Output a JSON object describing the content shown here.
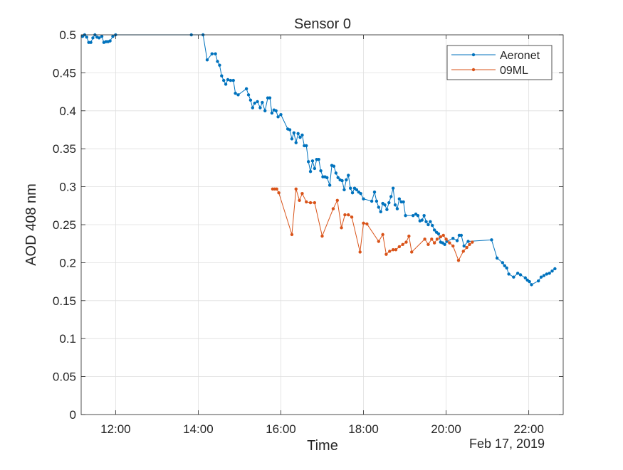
{
  "chart_data": {
    "type": "line",
    "title": "Sensor 0",
    "xlabel": "Time",
    "ylabel": "AOD 408 nm",
    "date_label": "Feb 17, 2019",
    "xlim": [
      "11:10",
      "22:50"
    ],
    "ylim": [
      0,
      0.5
    ],
    "x_ticks": [
      "12:00",
      "14:00",
      "16:00",
      "18:00",
      "20:00",
      "22:00"
    ],
    "y_ticks": [
      "0",
      "0.05",
      "0.1",
      "0.15",
      "0.2",
      "0.25",
      "0.3",
      "0.35",
      "0.4",
      "0.45",
      "0.5"
    ],
    "grid": true,
    "legend_position": "top-right",
    "series": [
      {
        "name": "Aeronet",
        "color": "#0072BD",
        "points": [
          [
            "11:12",
            0.498
          ],
          [
            "11:15",
            0.5
          ],
          [
            "11:18",
            0.497
          ],
          [
            "11:21",
            0.49
          ],
          [
            "11:24",
            0.49
          ],
          [
            "11:27",
            0.496
          ],
          [
            "11:30",
            0.5
          ],
          [
            "11:33",
            0.497
          ],
          [
            "11:36",
            0.496
          ],
          [
            "11:40",
            0.498
          ],
          [
            "11:43",
            0.49
          ],
          [
            "11:46",
            0.491
          ],
          [
            "11:49",
            0.491
          ],
          [
            "11:52",
            0.492
          ],
          [
            "11:56",
            0.498
          ],
          [
            "12:00",
            0.5
          ],
          [
            "13:50",
            0.5
          ],
          [
            "14:07",
            0.5
          ],
          [
            "14:13",
            0.467
          ],
          [
            "14:20",
            0.475
          ],
          [
            "14:25",
            0.475
          ],
          [
            "14:28",
            0.465
          ],
          [
            "14:31",
            0.46
          ],
          [
            "14:34",
            0.446
          ],
          [
            "14:37",
            0.44
          ],
          [
            "14:40",
            0.435
          ],
          [
            "14:43",
            0.441
          ],
          [
            "14:47",
            0.44
          ],
          [
            "14:51",
            0.44
          ],
          [
            "14:54",
            0.423
          ],
          [
            "14:58",
            0.421
          ],
          [
            "15:10",
            0.429
          ],
          [
            "15:13",
            0.421
          ],
          [
            "15:16",
            0.414
          ],
          [
            "15:19",
            0.404
          ],
          [
            "15:22",
            0.41
          ],
          [
            "15:26",
            0.412
          ],
          [
            "15:30",
            0.404
          ],
          [
            "15:33",
            0.411
          ],
          [
            "15:37",
            0.4
          ],
          [
            "15:41",
            0.417
          ],
          [
            "15:44",
            0.417
          ],
          [
            "15:47",
            0.397
          ],
          [
            "15:50",
            0.401
          ],
          [
            "15:53",
            0.4
          ],
          [
            "15:56",
            0.392
          ],
          [
            "16:00",
            0.395
          ],
          [
            "16:10",
            0.376
          ],
          [
            "16:13",
            0.375
          ],
          [
            "16:16",
            0.363
          ],
          [
            "16:19",
            0.371
          ],
          [
            "16:22",
            0.358
          ],
          [
            "16:25",
            0.37
          ],
          [
            "16:28",
            0.365
          ],
          [
            "16:31",
            0.368
          ],
          [
            "16:34",
            0.354
          ],
          [
            "16:37",
            0.354
          ],
          [
            "16:40",
            0.333
          ],
          [
            "16:43",
            0.32
          ],
          [
            "16:46",
            0.334
          ],
          [
            "16:49",
            0.324
          ],
          [
            "16:52",
            0.336
          ],
          [
            "16:55",
            0.336
          ],
          [
            "16:58",
            0.321
          ],
          [
            "17:01",
            0.313
          ],
          [
            "17:04",
            0.313
          ],
          [
            "17:07",
            0.312
          ],
          [
            "17:11",
            0.302
          ],
          [
            "17:14",
            0.328
          ],
          [
            "17:17",
            0.327
          ],
          [
            "17:20",
            0.318
          ],
          [
            "17:23",
            0.312
          ],
          [
            "17:26",
            0.309
          ],
          [
            "17:29",
            0.308
          ],
          [
            "17:32",
            0.296
          ],
          [
            "17:35",
            0.309
          ],
          [
            "17:38",
            0.315
          ],
          [
            "17:41",
            0.298
          ],
          [
            "17:44",
            0.292
          ],
          [
            "17:47",
            0.298
          ],
          [
            "17:50",
            0.296
          ],
          [
            "17:53",
            0.293
          ],
          [
            "17:56",
            0.291
          ],
          [
            "18:00",
            0.284
          ],
          [
            "18:12",
            0.281
          ],
          [
            "18:16",
            0.293
          ],
          [
            "18:19",
            0.281
          ],
          [
            "18:22",
            0.273
          ],
          [
            "18:25",
            0.267
          ],
          [
            "18:28",
            0.278
          ],
          [
            "18:31",
            0.276
          ],
          [
            "18:34",
            0.27
          ],
          [
            "18:37",
            0.279
          ],
          [
            "18:40",
            0.287
          ],
          [
            "18:43",
            0.298
          ],
          [
            "18:46",
            0.276
          ],
          [
            "18:49",
            0.271
          ],
          [
            "18:52",
            0.284
          ],
          [
            "18:55",
            0.28
          ],
          [
            "18:58",
            0.28
          ],
          [
            "19:01",
            0.262
          ],
          [
            "19:12",
            0.262
          ],
          [
            "19:16",
            0.264
          ],
          [
            "19:19",
            0.262
          ],
          [
            "19:22",
            0.255
          ],
          [
            "19:25",
            0.256
          ],
          [
            "19:28",
            0.262
          ],
          [
            "19:31",
            0.254
          ],
          [
            "19:34",
            0.25
          ],
          [
            "19:37",
            0.254
          ],
          [
            "19:40",
            0.249
          ],
          [
            "19:43",
            0.243
          ],
          [
            "19:46",
            0.24
          ],
          [
            "19:49",
            0.238
          ],
          [
            "19:52",
            0.227
          ],
          [
            "19:55",
            0.226
          ],
          [
            "19:58",
            0.224
          ],
          [
            "20:01",
            0.228
          ],
          [
            "20:10",
            0.232
          ],
          [
            "20:16",
            0.229
          ],
          [
            "20:19",
            0.236
          ],
          [
            "20:22",
            0.236
          ],
          [
            "20:26",
            0.222
          ],
          [
            "20:32",
            0.228
          ],
          [
            "21:06",
            0.23
          ],
          [
            "21:14",
            0.206
          ],
          [
            "21:22",
            0.2
          ],
          [
            "21:25",
            0.196
          ],
          [
            "21:28",
            0.193
          ],
          [
            "21:31",
            0.185
          ],
          [
            "21:38",
            0.181
          ],
          [
            "21:44",
            0.186
          ],
          [
            "21:48",
            0.184
          ],
          [
            "21:55",
            0.18
          ],
          [
            "21:58",
            0.177
          ],
          [
            "22:01",
            0.175
          ],
          [
            "22:04",
            0.171
          ],
          [
            "22:14",
            0.176
          ],
          [
            "22:18",
            0.181
          ],
          [
            "22:22",
            0.183
          ],
          [
            "22:26",
            0.185
          ],
          [
            "22:30",
            0.186
          ],
          [
            "22:34",
            0.189
          ],
          [
            "22:38",
            0.192
          ]
        ]
      },
      {
        "name": "09ML",
        "color": "#D95319",
        "points": [
          [
            "15:48",
            0.297
          ],
          [
            "15:51",
            0.297
          ],
          [
            "15:54",
            0.297
          ],
          [
            "15:57",
            0.292
          ],
          [
            "16:16",
            0.237
          ],
          [
            "16:22",
            0.297
          ],
          [
            "16:27",
            0.282
          ],
          [
            "16:31",
            0.291
          ],
          [
            "16:37",
            0.28
          ],
          [
            "16:43",
            0.279
          ],
          [
            "16:49",
            0.279
          ],
          [
            "17:00",
            0.235
          ],
          [
            "17:16",
            0.271
          ],
          [
            "17:22",
            0.282
          ],
          [
            "17:28",
            0.246
          ],
          [
            "17:33",
            0.263
          ],
          [
            "17:38",
            0.263
          ],
          [
            "17:43",
            0.26
          ],
          [
            "17:55",
            0.214
          ],
          [
            "18:00",
            0.252
          ],
          [
            "18:05",
            0.251
          ],
          [
            "18:22",
            0.228
          ],
          [
            "18:28",
            0.237
          ],
          [
            "18:33",
            0.211
          ],
          [
            "18:38",
            0.215
          ],
          [
            "18:43",
            0.217
          ],
          [
            "18:47",
            0.217
          ],
          [
            "18:52",
            0.221
          ],
          [
            "18:57",
            0.224
          ],
          [
            "19:02",
            0.227
          ],
          [
            "19:06",
            0.235
          ],
          [
            "19:10",
            0.214
          ],
          [
            "19:29",
            0.231
          ],
          [
            "19:34",
            0.224
          ],
          [
            "19:39",
            0.231
          ],
          [
            "19:43",
            0.226
          ],
          [
            "19:47",
            0.231
          ],
          [
            "19:52",
            0.234
          ],
          [
            "19:56",
            0.236
          ],
          [
            "20:00",
            0.231
          ],
          [
            "20:05",
            0.226
          ],
          [
            "20:10",
            0.222
          ],
          [
            "20:18",
            0.203
          ],
          [
            "20:25",
            0.215
          ],
          [
            "20:30",
            0.22
          ],
          [
            "20:34",
            0.224
          ],
          [
            "20:38",
            0.227
          ]
        ]
      }
    ]
  }
}
